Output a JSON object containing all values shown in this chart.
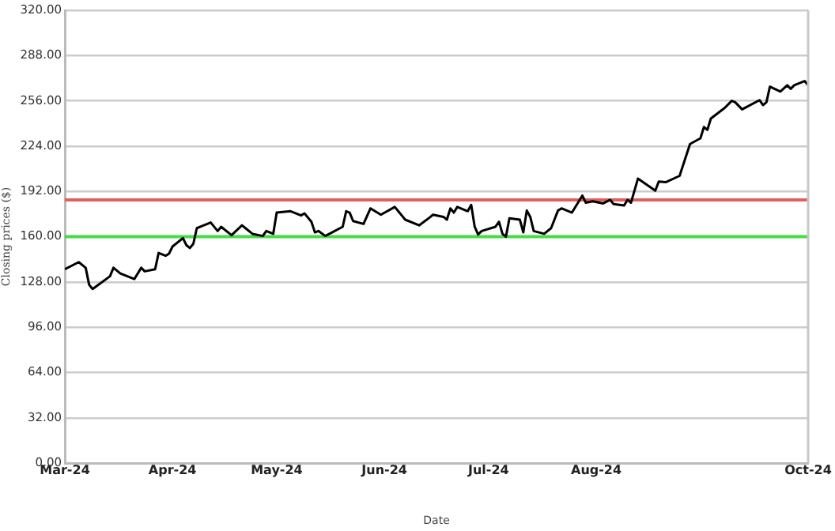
{
  "chart_data": {
    "type": "line",
    "xlabel": "Date",
    "ylabel": "Closing prices ($)",
    "x": [
      "2024-03-01",
      "2024-03-05",
      "2024-03-07",
      "2024-03-08",
      "2024-03-09",
      "2024-03-14",
      "2024-03-15",
      "2024-03-17",
      "2024-03-21",
      "2024-03-23",
      "2024-03-24",
      "2024-03-27",
      "2024-03-28",
      "2024-03-30",
      "2024-03-31",
      "2024-04-01",
      "2024-04-04",
      "2024-04-05",
      "2024-04-06",
      "2024-04-07",
      "2024-04-08",
      "2024-04-12",
      "2024-04-14",
      "2024-04-15",
      "2024-04-18",
      "2024-04-21",
      "2024-04-22",
      "2024-04-24",
      "2024-04-27",
      "2024-04-28",
      "2024-04-30",
      "2024-05-01",
      "2024-05-05",
      "2024-05-08",
      "2024-05-09",
      "2024-05-11",
      "2024-05-12",
      "2024-05-13",
      "2024-05-15",
      "2024-05-20",
      "2024-05-21",
      "2024-05-22",
      "2024-05-23",
      "2024-05-26",
      "2024-05-28",
      "2024-05-31",
      "2024-06-04",
      "2024-06-05",
      "2024-06-07",
      "2024-06-11",
      "2024-06-14",
      "2024-06-15",
      "2024-06-18",
      "2024-06-19",
      "2024-06-20",
      "2024-06-21",
      "2024-06-22",
      "2024-06-25",
      "2024-06-26",
      "2024-06-27",
      "2024-06-28",
      "2024-06-29",
      "2024-07-03",
      "2024-07-04",
      "2024-07-05",
      "2024-07-06",
      "2024-07-07",
      "2024-07-10",
      "2024-07-11",
      "2024-07-12",
      "2024-07-13",
      "2024-07-14",
      "2024-07-17",
      "2024-07-19",
      "2024-07-21",
      "2024-07-22",
      "2024-07-25",
      "2024-07-28",
      "2024-07-29",
      "2024-07-31",
      "2024-08-03",
      "2024-08-05",
      "2024-08-06",
      "2024-08-09",
      "2024-08-10",
      "2024-08-11",
      "2024-08-13",
      "2024-08-18",
      "2024-08-19",
      "2024-08-21",
      "2024-08-25",
      "2024-08-28",
      "2024-08-31",
      "2024-09-01",
      "2024-09-02",
      "2024-09-03",
      "2024-09-07",
      "2024-09-09",
      "2024-09-10",
      "2024-09-12",
      "2024-09-17",
      "2024-09-18",
      "2024-09-19",
      "2024-09-20",
      "2024-09-23",
      "2024-09-25",
      "2024-09-26",
      "2024-09-27",
      "2024-09-30",
      "2024-10-01"
    ],
    "series": [
      {
        "color": "#000000",
        "values": [
          137,
          142,
          138,
          126,
          123,
          132,
          138,
          134,
          130,
          138,
          135.5,
          137,
          148.5,
          146.5,
          148,
          153,
          159,
          154,
          152,
          155,
          166,
          170,
          164,
          167,
          161,
          168,
          166,
          162,
          160.5,
          164,
          162,
          177,
          178,
          175,
          176.5,
          170.5,
          163,
          164,
          160.5,
          167,
          178,
          177,
          171,
          169,
          180,
          175.5,
          181,
          178,
          172,
          168,
          173.5,
          175.5,
          174,
          172,
          180,
          177,
          181,
          178,
          182.5,
          167,
          161.5,
          164,
          167,
          170.5,
          162,
          160,
          173,
          172,
          163,
          178.5,
          174,
          164,
          162,
          166,
          178.5,
          180,
          177,
          189,
          184,
          185,
          183.5,
          186,
          183,
          182,
          186,
          184,
          201,
          192.5,
          199,
          198.5,
          203,
          225.5,
          229.5,
          237.5,
          235.5,
          243.5,
          251,
          256,
          255,
          250,
          256.5,
          253,
          255,
          266,
          262.5,
          267,
          264.5,
          267,
          270,
          267
        ]
      }
    ],
    "xlim": [
      "2024-03-01",
      "2024-10-01"
    ],
    "xticks": [
      {
        "value": "2024-03-01",
        "label": "Mar-24"
      },
      {
        "value": "2024-04-01",
        "label": "Apr-24"
      },
      {
        "value": "2024-05-01",
        "label": "May-24"
      },
      {
        "value": "2024-06-01",
        "label": "Jun-24"
      },
      {
        "value": "2024-07-01",
        "label": "Jul-24"
      },
      {
        "value": "2024-08-01",
        "label": "Aug-24"
      },
      {
        "value": "2024-10-01",
        "label": "Oct-24"
      }
    ],
    "ylim": [
      0,
      320
    ],
    "yticks": [
      {
        "value": 0,
        "label": "0.00"
      },
      {
        "value": 32,
        "label": "32.00"
      },
      {
        "value": 64,
        "label": "64.00"
      },
      {
        "value": 96,
        "label": "96.00"
      },
      {
        "value": 128,
        "label": "128.00"
      },
      {
        "value": 160,
        "label": "160.00"
      },
      {
        "value": 192,
        "label": "192.00"
      },
      {
        "value": 224,
        "label": "224.00"
      },
      {
        "value": 256,
        "label": "256.00"
      },
      {
        "value": 288,
        "label": "288.00"
      },
      {
        "value": 320,
        "label": "320.00"
      }
    ],
    "ref_lines": [
      {
        "axis": "y",
        "value": 186,
        "color": "#e06060"
      },
      {
        "axis": "y",
        "value": 160,
        "color": "#44dd44"
      }
    ],
    "grid": "y",
    "legend": false
  }
}
